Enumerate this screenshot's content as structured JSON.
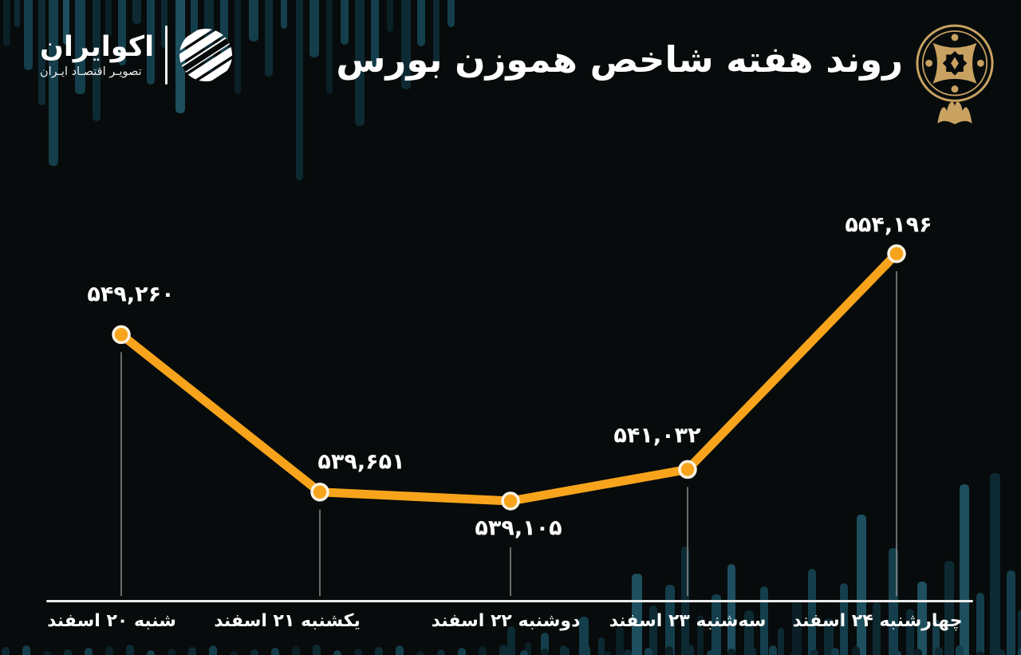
{
  "header": {
    "title": "روند هفته شاخص هموزن بورس",
    "brand": {
      "name": "اکوایران",
      "tagline": "تصویـر اقتصـاد ایـران"
    },
    "icons": {
      "brand_mark": "ecoiran-striped-globe-icon",
      "right_emblem": "bourse-gold-emblem-icon"
    }
  },
  "chart_data": {
    "type": "line",
    "title": "روند هفته شاخص هموزن بورس",
    "categories": [
      "شنبه ۲۰ اسفند",
      "یکشنبه ۲۱ اسفند",
      "دوشنبه ۲۲ اسفند",
      "سه‌شنبه ۲۳ اسفند",
      "چهارشنبه ۲۴ اسفند"
    ],
    "series": [
      {
        "name": "شاخص هموزن بورس",
        "values": [
          549260,
          539651,
          539105,
          541032,
          554196
        ],
        "value_labels": [
          "۵۴۹,۲۶۰",
          "۵۳۹,۶۵۱",
          "۵۳۹,۱۰۵",
          "۵۴۱,۰۳۲",
          "۵۵۴,۱۹۶"
        ]
      }
    ],
    "xlabel": "",
    "ylabel": "",
    "ylim": [
      537500,
      556500
    ],
    "grid": false,
    "legend": "none",
    "line_color": "#F7A41C",
    "marker_fill": "#F7A41C",
    "marker_stroke": "#FCF3E3",
    "drop_line_color": "#9A9A9A",
    "axis_color": "#EDEDED",
    "label_color": "#FFFFFF"
  },
  "colors": {
    "background": "#070B0B",
    "accent_orange": "#F7A41C",
    "emblem_gold": "#C9A262",
    "bar_teal_dark": "#0D2A33",
    "bar_teal_mid": "#143E4B",
    "bar_teal_faint": "#0A1F26",
    "bar_teal_light": "#1D4F5E"
  }
}
